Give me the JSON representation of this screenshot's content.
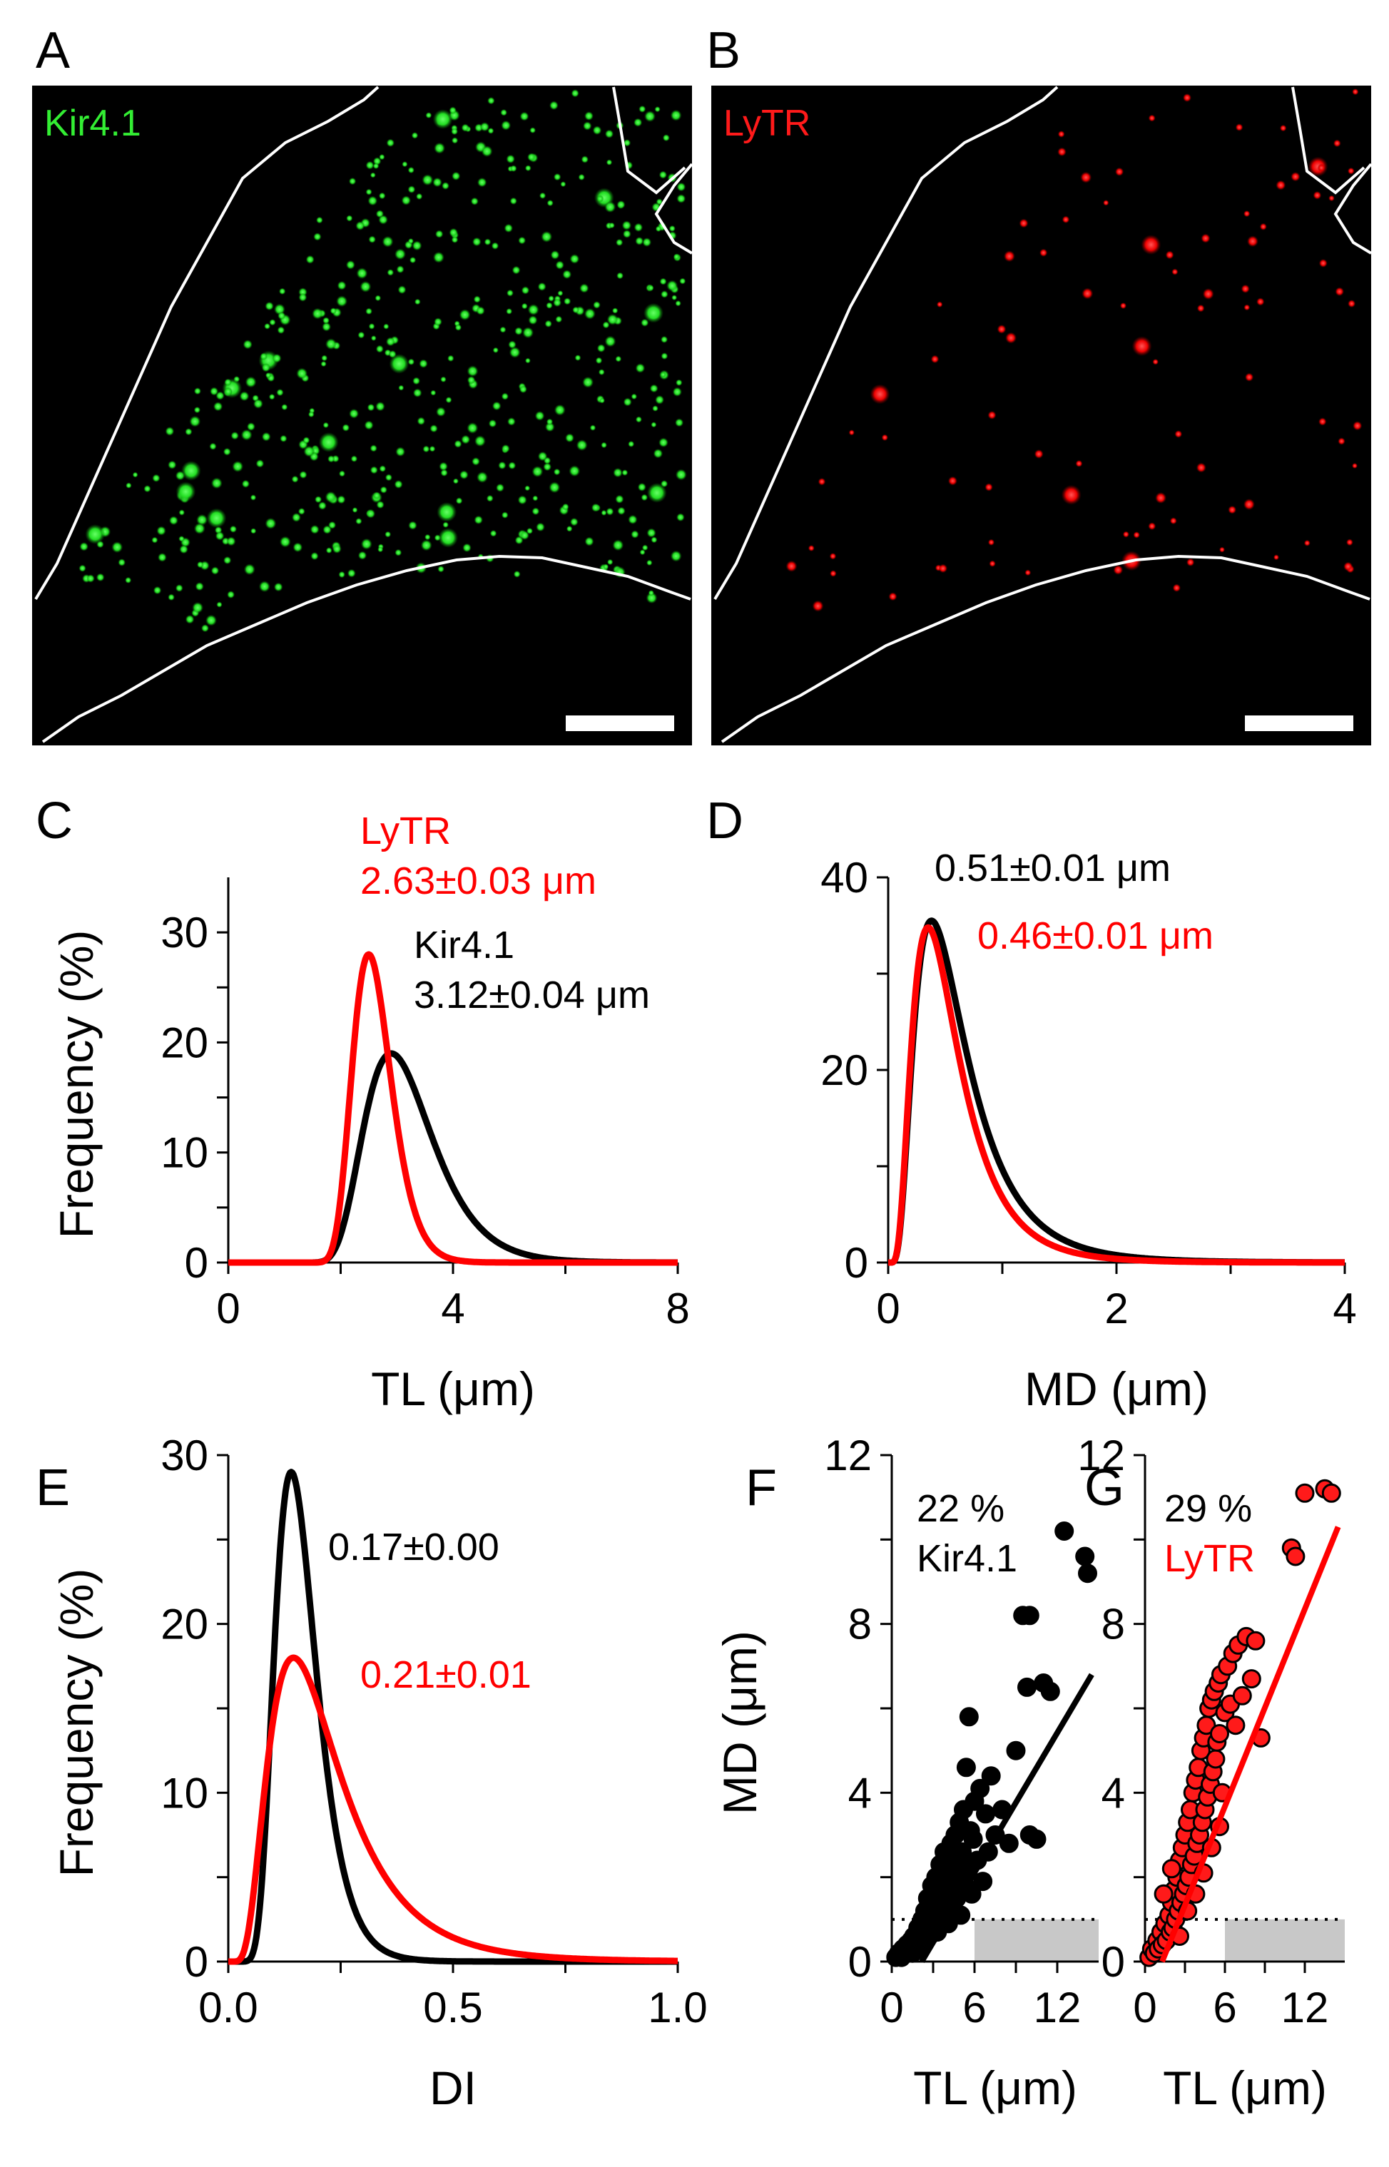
{
  "figure": {
    "panel_labels": [
      "A",
      "B",
      "C",
      "D",
      "E",
      "F",
      "G"
    ],
    "colors": {
      "black": "#000000",
      "red": "#ff0000",
      "green": "#33ee33",
      "white": "#ffffff",
      "shade": "#c8c8c8"
    }
  },
  "micrographs": {
    "A": {
      "label": "Kir4.1",
      "color": "#33ee33"
    },
    "B": {
      "label": "LyTR",
      "color": "#ff1a1a"
    }
  },
  "chart_data": [
    {
      "panel": "C",
      "type": "line",
      "xlabel": "TL (μm)",
      "ylabel": "Frequency (%)",
      "xlim": [
        0,
        8
      ],
      "ylim": [
        0,
        35
      ],
      "xticks": [
        0,
        4,
        8
      ],
      "yticks": [
        0,
        10,
        20,
        30
      ],
      "series": [
        {
          "name": "Kir4.1",
          "color": "#000000",
          "peak_x": 2.9,
          "peak_y": 19,
          "shape": 0.32,
          "min_x": 1.0
        },
        {
          "name": "LyTR",
          "color": "#ff0000",
          "peak_x": 2.5,
          "peak_y": 28,
          "shape": 0.23,
          "min_x": 1.0
        }
      ],
      "annotations": [
        {
          "lines": [
            "LyTR",
            "2.63±0.03 μm"
          ],
          "color": "#ff0000"
        },
        {
          "lines": [
            "Kir4.1",
            "3.12±0.04 μm"
          ],
          "color": "#000000"
        }
      ]
    },
    {
      "panel": "D",
      "type": "line",
      "xlabel": "MD (μm)",
      "ylabel": "",
      "xlim": [
        0,
        4
      ],
      "ylim": [
        0,
        40
      ],
      "xticks": [
        0,
        2,
        4
      ],
      "yticks": [
        0,
        20,
        40
      ],
      "series": [
        {
          "name": "Kir4.1",
          "color": "#000000",
          "peak_x": 0.38,
          "peak_y": 35.5,
          "shape": 0.6,
          "min_x": 0.0
        },
        {
          "name": "LyTR",
          "color": "#ff0000",
          "peak_x": 0.35,
          "peak_y": 34.8,
          "shape": 0.58,
          "min_x": 0.0
        }
      ],
      "annotations": [
        {
          "lines": [
            "0.51±0.01 μm"
          ],
          "color": "#000000"
        },
        {
          "lines": [
            "0.46±0.01 μm"
          ],
          "color": "#ff0000"
        }
      ]
    },
    {
      "panel": "E",
      "type": "line",
      "xlabel": "DI",
      "ylabel": "Frequency (%)",
      "xlim": [
        0.0,
        1.0
      ],
      "ylim": [
        0,
        30
      ],
      "xticks": [
        "0.0",
        "0.5",
        "1.0"
      ],
      "yticks": [
        0,
        10,
        20,
        30
      ],
      "series": [
        {
          "name": "Kir4.1",
          "color": "#000000",
          "peak_x": 0.14,
          "peak_y": 29,
          "shape": 0.33,
          "min_x": 0.0
        },
        {
          "name": "LyTR",
          "color": "#ff0000",
          "peak_x": 0.145,
          "peak_y": 18,
          "shape": 0.55,
          "min_x": 0.0
        }
      ],
      "annotations": [
        {
          "lines": [
            "0.17±0.00"
          ],
          "color": "#000000"
        },
        {
          "lines": [
            "0.21±0.01"
          ],
          "color": "#ff0000"
        }
      ]
    },
    {
      "panel": "F",
      "type": "scatter",
      "xlabel": "TL (μm)",
      "ylabel": "MD (μm)",
      "xlim": [
        0,
        15
      ],
      "ylim": [
        0,
        12
      ],
      "xticks": [
        0,
        6,
        12
      ],
      "yticks": [
        0,
        4,
        8,
        12
      ],
      "threshold": 1.0,
      "fit": {
        "x": [
          0,
          14.5
        ],
        "y": [
          -1.2,
          6.8
        ]
      },
      "point_color": "#000000",
      "annotation_lines": [
        "22 %",
        "Kir4.1"
      ],
      "annotation_color": "#000000",
      "points": [
        [
          0.3,
          0.1
        ],
        [
          0.5,
          0.2
        ],
        [
          0.7,
          0.1
        ],
        [
          0.8,
          0.3
        ],
        [
          1.0,
          0.2
        ],
        [
          1.1,
          0.4
        ],
        [
          1.2,
          0.3
        ],
        [
          1.4,
          0.5
        ],
        [
          1.5,
          0.2
        ],
        [
          1.6,
          0.6
        ],
        [
          1.8,
          0.4
        ],
        [
          1.9,
          0.8
        ],
        [
          2.0,
          0.3
        ],
        [
          2.1,
          0.7
        ],
        [
          2.2,
          1.0
        ],
        [
          2.3,
          0.5
        ],
        [
          2.4,
          1.2
        ],
        [
          2.5,
          0.8
        ],
        [
          2.6,
          1.5
        ],
        [
          2.7,
          0.6
        ],
        [
          2.8,
          1.1
        ],
        [
          2.9,
          1.8
        ],
        [
          3.0,
          0.9
        ],
        [
          3.1,
          1.4
        ],
        [
          3.2,
          2.0
        ],
        [
          3.3,
          0.7
        ],
        [
          3.4,
          1.6
        ],
        [
          3.5,
          2.3
        ],
        [
          3.6,
          1.0
        ],
        [
          3.7,
          1.9
        ],
        [
          3.8,
          2.6
        ],
        [
          3.9,
          1.3
        ],
        [
          4.0,
          2.2
        ],
        [
          4.1,
          0.9
        ],
        [
          4.2,
          1.7
        ],
        [
          4.3,
          2.8
        ],
        [
          4.4,
          1.2
        ],
        [
          4.5,
          2.4
        ],
        [
          4.6,
          3.0
        ],
        [
          4.7,
          1.5
        ],
        [
          4.8,
          2.0
        ],
        [
          4.9,
          3.3
        ],
        [
          5.0,
          1.1
        ],
        [
          5.1,
          2.6
        ],
        [
          5.2,
          3.6
        ],
        [
          5.3,
          1.8
        ],
        [
          5.4,
          4.6
        ],
        [
          5.5,
          2.2
        ],
        [
          5.6,
          5.8
        ],
        [
          5.7,
          3.1
        ],
        [
          5.8,
          1.6
        ],
        [
          5.9,
          2.9
        ],
        [
          6.0,
          3.8
        ],
        [
          6.2,
          2.4
        ],
        [
          6.4,
          4.1
        ],
        [
          6.6,
          1.9
        ],
        [
          6.8,
          3.5
        ],
        [
          7.0,
          2.6
        ],
        [
          7.2,
          4.4
        ],
        [
          7.5,
          3.0
        ],
        [
          8.0,
          3.6
        ],
        [
          8.5,
          2.8
        ],
        [
          9.0,
          5.0
        ],
        [
          9.5,
          8.2
        ],
        [
          10.0,
          8.2
        ],
        [
          10.0,
          3.0
        ],
        [
          10.5,
          2.9
        ],
        [
          9.8,
          6.5
        ],
        [
          11.0,
          6.6
        ],
        [
          11.5,
          6.4
        ],
        [
          12.5,
          10.2
        ],
        [
          14.0,
          9.6
        ],
        [
          14.2,
          9.2
        ]
      ]
    },
    {
      "panel": "G",
      "type": "scatter",
      "xlabel": "TL (μm)",
      "ylabel": "",
      "xlim": [
        0,
        15
      ],
      "ylim": [
        0,
        12
      ],
      "xticks": [
        0,
        6,
        12
      ],
      "yticks": [
        0,
        4,
        8,
        12
      ],
      "threshold": 1.0,
      "fit": {
        "x": [
          0,
          14.5
        ],
        "y": [
          -1.0,
          10.3
        ]
      },
      "point_color": "#ff1a1a",
      "annotation_lines": [
        "29 %",
        "LyTR"
      ],
      "annotation_color": "#ff0000",
      "points": [
        [
          0.3,
          0.1
        ],
        [
          0.5,
          0.3
        ],
        [
          0.7,
          0.2
        ],
        [
          0.9,
          0.5
        ],
        [
          1.0,
          0.3
        ],
        [
          1.2,
          0.7
        ],
        [
          1.3,
          0.4
        ],
        [
          1.5,
          0.9
        ],
        [
          1.6,
          0.5
        ],
        [
          1.8,
          1.1
        ],
        [
          1.9,
          0.7
        ],
        [
          2.0,
          1.4
        ],
        [
          2.1,
          0.8
        ],
        [
          2.2,
          1.7
        ],
        [
          2.3,
          1.0
        ],
        [
          2.4,
          2.0
        ],
        [
          2.5,
          1.2
        ],
        [
          2.6,
          2.4
        ],
        [
          2.7,
          1.4
        ],
        [
          2.8,
          2.7
        ],
        [
          2.9,
          1.6
        ],
        [
          3.0,
          3.0
        ],
        [
          3.1,
          1.8
        ],
        [
          3.2,
          3.3
        ],
        [
          3.3,
          2.0
        ],
        [
          3.4,
          3.6
        ],
        [
          3.5,
          2.3
        ],
        [
          3.6,
          4.0
        ],
        [
          3.7,
          2.5
        ],
        [
          3.8,
          4.3
        ],
        [
          3.9,
          2.8
        ],
        [
          4.0,
          4.6
        ],
        [
          4.1,
          3.0
        ],
        [
          4.2,
          5.0
        ],
        [
          4.3,
          3.3
        ],
        [
          4.4,
          5.3
        ],
        [
          4.5,
          3.6
        ],
        [
          4.6,
          5.6
        ],
        [
          4.7,
          3.9
        ],
        [
          4.8,
          6.0
        ],
        [
          4.9,
          4.2
        ],
        [
          5.0,
          6.2
        ],
        [
          5.1,
          4.5
        ],
        [
          5.2,
          6.4
        ],
        [
          5.3,
          4.8
        ],
        [
          5.4,
          5.2
        ],
        [
          5.5,
          6.6
        ],
        [
          5.6,
          5.4
        ],
        [
          5.7,
          6.8
        ],
        [
          5.8,
          4.0
        ],
        [
          6.0,
          5.9
        ],
        [
          6.2,
          7.0
        ],
        [
          6.4,
          6.1
        ],
        [
          6.6,
          7.3
        ],
        [
          6.8,
          5.6
        ],
        [
          7.0,
          7.5
        ],
        [
          7.3,
          6.3
        ],
        [
          7.6,
          7.7
        ],
        [
          8.0,
          6.7
        ],
        [
          8.3,
          7.6
        ],
        [
          8.7,
          5.3
        ],
        [
          11.0,
          9.8
        ],
        [
          11.3,
          9.6
        ],
        [
          12.0,
          11.1
        ],
        [
          13.5,
          11.2
        ],
        [
          14.0,
          11.1
        ],
        [
          1.4,
          1.6
        ],
        [
          2.0,
          2.2
        ],
        [
          2.6,
          0.6
        ],
        [
          3.2,
          1.2
        ],
        [
          3.8,
          1.6
        ],
        [
          4.4,
          2.1
        ],
        [
          5.0,
          2.7
        ],
        [
          5.6,
          3.2
        ]
      ]
    }
  ]
}
